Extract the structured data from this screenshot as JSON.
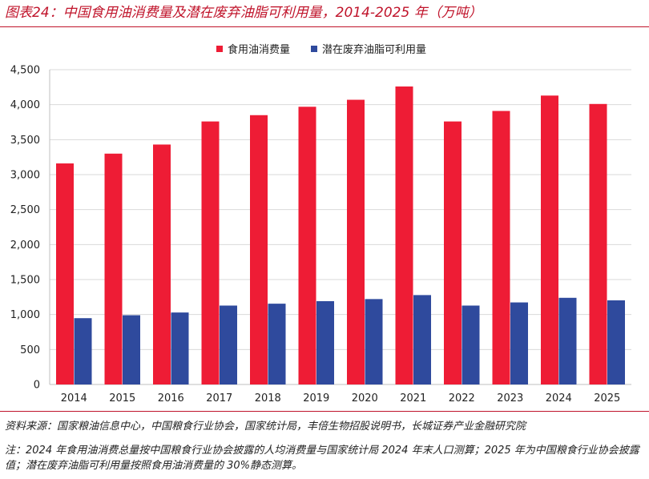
{
  "figure": {
    "title": "图表24：中国食用油消费量及潜在废弃油脂可利用量，2014-2025 年（万吨）"
  },
  "footer": {
    "source": "资料来源：国家粮油信息中心，中国粮食行业协会，国家统计局，丰倍生物招股说明书，长城证券产业金融研究院",
    "note": "注：2024 年食用油消费总量按中国粮食行业协会披露的人均消费量与国家统计局 2024 年末人口测算；2025 年为中国粮食行业协会披露值；潜在废弃油脂可利用量按照食用油消费量的 30%静态测算。"
  },
  "colors": {
    "series1": "#ee1c35",
    "series2": "#2f4a9d",
    "accent": "#c0142b"
  },
  "chart_data": {
    "type": "bar",
    "categories": [
      "2014",
      "2015",
      "2016",
      "2017",
      "2018",
      "2019",
      "2020",
      "2021",
      "2022",
      "2023",
      "2024",
      "2025"
    ],
    "series": [
      {
        "name": "食用油消费量",
        "values": [
          3160,
          3300,
          3430,
          3760,
          3850,
          3970,
          4070,
          4260,
          3760,
          3910,
          4130,
          4010
        ]
      },
      {
        "name": "潜在废弃油脂可利用量",
        "values": [
          948,
          990,
          1029,
          1128,
          1155,
          1191,
          1221,
          1278,
          1128,
          1173,
          1239,
          1203
        ]
      }
    ],
    "ylim": [
      0,
      4500
    ],
    "yticks": [
      "0",
      "500",
      "1,000",
      "1,500",
      "2,000",
      "2,500",
      "3,000",
      "3,500",
      "4,000",
      "4,500"
    ],
    "grid": true,
    "legend_position": "top-center"
  }
}
